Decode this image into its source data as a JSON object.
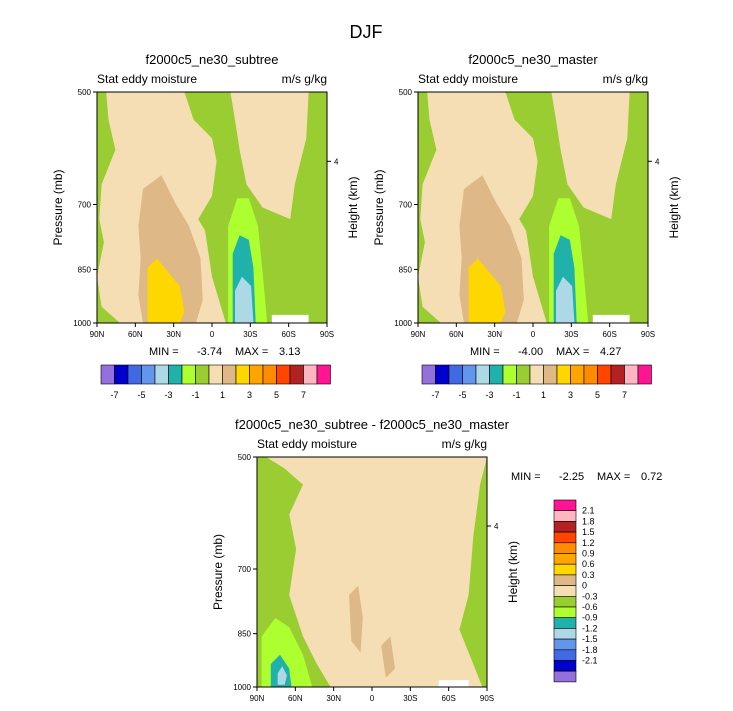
{
  "chart_data": {
    "type": "heatmap",
    "title": "DJF",
    "variable": "Stat eddy moisture",
    "units": "m/s g/kg",
    "ylabel": "Pressure (mb)",
    "ylabel_right": "Height (km)",
    "x_ticks": [
      "90N",
      "60N",
      "30N",
      "0",
      "30S",
      "60S",
      "90S"
    ],
    "y_ticks": [
      "500",
      "700",
      "850",
      "1000"
    ],
    "right_ticks": [
      "4"
    ],
    "panels": [
      {
        "title": "f2000c5_ne30_subtree",
        "min_label": "MIN = ",
        "min": "-3.74",
        "max_label": "MAX = ",
        "max": "3.13"
      },
      {
        "title": "f2000c5_ne30_master",
        "min_label": "MIN = ",
        "min": "-4.00",
        "max_label": "MAX = ",
        "max": "4.27"
      },
      {
        "title": "f2000c5_ne30_subtree - f2000c5_ne30_master",
        "min_label": "MIN = ",
        "min": "-2.25",
        "max_label": "MAX = ",
        "max": "0.72"
      }
    ],
    "colorbar_top": {
      "colors": [
        "#9370DB",
        "#0000CD",
        "#4169E1",
        "#6495ED",
        "#ADD8E6",
        "#20B2AA",
        "#ADFF2F",
        "#9ACD32",
        "#F5DEB3",
        "#DEB887",
        "#FFD700",
        "#FFA500",
        "#FF8C00",
        "#FF4500",
        "#B22222",
        "#FFB6C1",
        "#FF1493"
      ],
      "labels": [
        "-7",
        "-5",
        "-3",
        "-1",
        "1",
        "3",
        "5",
        "7"
      ]
    },
    "colorbar_diff": {
      "colors": [
        "#FF1493",
        "#FFB6C1",
        "#B22222",
        "#FF4500",
        "#FF8C00",
        "#FFA500",
        "#FFD700",
        "#DEB887",
        "#F5DEB3",
        "#9ACD32",
        "#ADFF2F",
        "#20B2AA",
        "#ADD8E6",
        "#6495ED",
        "#4169E1",
        "#0000CD",
        "#9370DB"
      ],
      "labels": [
        "2.1",
        "1.8",
        "1.5",
        "1.2",
        "0.9",
        "0.6",
        "0.3",
        "0",
        "-0.3",
        "-0.6",
        "-0.9",
        "-1.2",
        "-1.5",
        "-1.8",
        "-2.1"
      ]
    },
    "fields": {
      "background": "#9ACD32",
      "beige": "#F5DEB3",
      "tan": "#DEB887",
      "yellow": "#FFD700",
      "lightgreen": "#ADFF2F",
      "teal": "#20B2AA",
      "lightblue": "#ADD8E6",
      "white": "#ffffff"
    }
  }
}
